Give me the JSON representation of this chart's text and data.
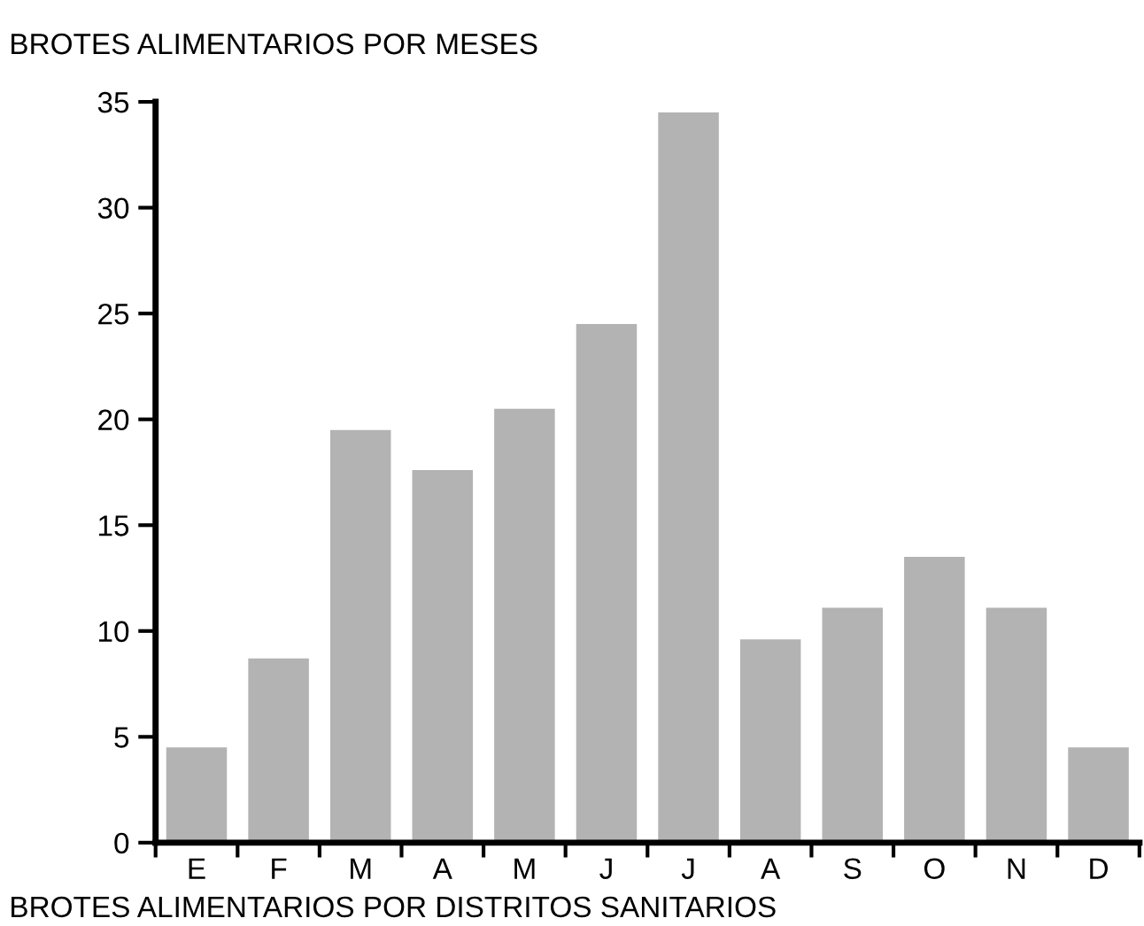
{
  "chart_data": {
    "type": "bar",
    "title": "BROTES ALIMENTARIOS POR MESES",
    "categories": [
      "E",
      "F",
      "M",
      "A",
      "M",
      "J",
      "J",
      "A",
      "S",
      "O",
      "N",
      "D"
    ],
    "values": [
      4.5,
      8.7,
      19.5,
      17.6,
      20.5,
      24.5,
      34.5,
      9.6,
      11.1,
      13.5,
      11.1,
      4.5
    ],
    "color": "#b3b3b3",
    "ylim": [
      0,
      35
    ],
    "yticks": [
      0,
      5,
      10,
      15,
      20,
      25,
      30,
      35
    ],
    "grid": false,
    "annotations": [
      "BROTES ALIMENTARIOS POR DISTRITOS SANITARIOS"
    ]
  }
}
